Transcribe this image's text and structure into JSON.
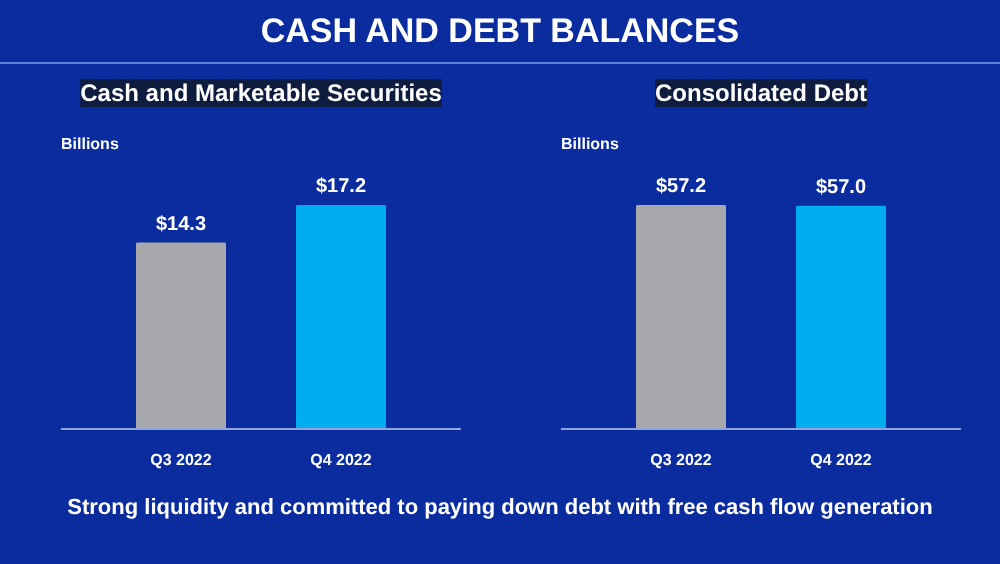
{
  "chart_data": [
    {
      "type": "bar",
      "title": "Cash and Marketable Securities",
      "ylabel": "Billions",
      "categories": [
        "Q3 2022",
        "Q4 2022"
      ],
      "values": [
        14.3,
        17.2
      ],
      "colors": [
        "#a7a9ac",
        "#00aeef"
      ],
      "value_labels": [
        "$14.3",
        "$17.2"
      ],
      "tick_labels": "x",
      "grid": false,
      "annotations": [
        "CASH AND DEBT BALANCES",
        "Strong liquidity and committed to paying down debt with free cash flow generation"
      ]
    },
    {
      "type": "bar",
      "title": "Consolidated Debt",
      "ylabel": "Billions",
      "categories": [
        "Q3 2022",
        "Q4 2022"
      ],
      "values": [
        57.2,
        57.0
      ],
      "colors": [
        "#a7a9ac",
        "#00aeef"
      ],
      "value_labels": [
        "$57.2",
        "$57.0"
      ],
      "tick_labels": "x",
      "grid": false
    }
  ]
}
